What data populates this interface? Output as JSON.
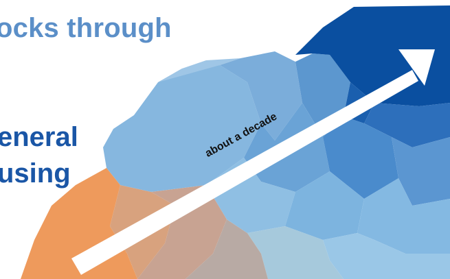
{
  "headline_fragment": "ocks through",
  "body_line_1": "eneral",
  "body_line_2": "using",
  "arrow_label": "about a decade",
  "colors": {
    "headline": "#5b8fc8",
    "body": "#1a56a6",
    "orange": "#ee9a5c",
    "dark_blue": "#0a4fa0",
    "light_blue": "#86b7df",
    "arrow": "#ffffff"
  }
}
